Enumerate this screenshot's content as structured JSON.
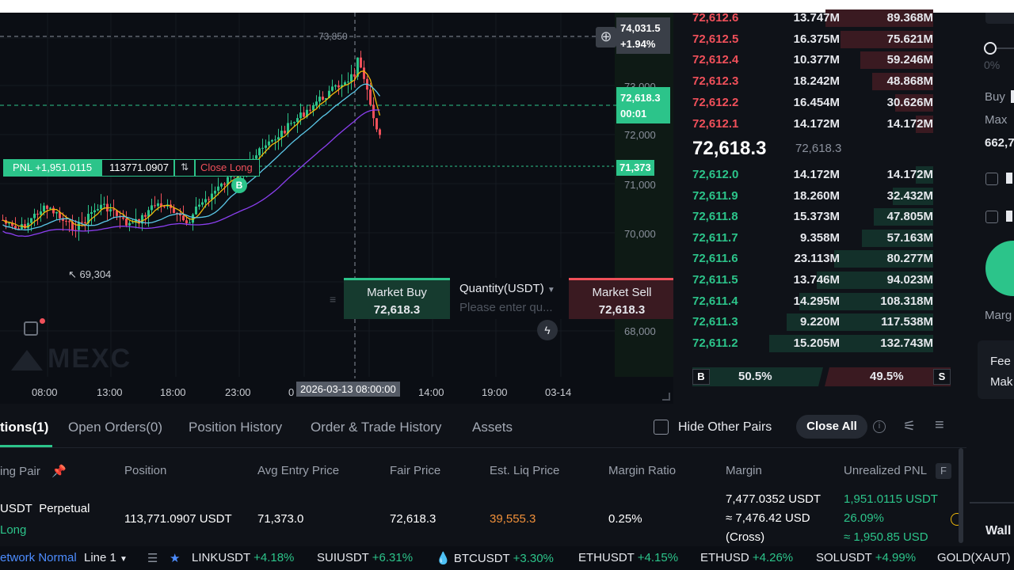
{
  "chart": {
    "price_scale": [
      "73,000",
      "72,000",
      "71,000",
      "70,000",
      "68,000"
    ],
    "time_axis": [
      "08:00",
      "13:00",
      "18:00",
      "23:00",
      "0",
      "14:00",
      "19:00",
      "03-14"
    ],
    "crosshair_time": "2026-03-13 08:00:00",
    "high_marker": "73,850",
    "low_marker": "69,304",
    "top_badge": {
      "price": "74,031.5",
      "change": "+1.94%"
    },
    "last_price_badge": {
      "price": "72,618.3",
      "countdown": "00:01"
    },
    "entry_line_badge": "71,373",
    "pnl_bar": {
      "pnl_label": "PNL +1,951.0115",
      "size": "113771.0907",
      "close_label": "Close Long"
    },
    "entry_marker": "B",
    "watermark": "MEXC",
    "colors": {
      "up": "#2cc48a",
      "down": "#f0505a",
      "ma_yellow": "#f0b90b",
      "ma_cyan": "#5bc8e8",
      "ma_purple": "#8b3ff0"
    }
  },
  "quick_trade": {
    "buy_label": "Market Buy",
    "buy_price": "72,618.3",
    "qty_label": "Quantity(USDT)",
    "qty_placeholder": "Please enter qu...",
    "sell_label": "Market Sell",
    "sell_price": "72,618.3"
  },
  "orderbook": {
    "asks": [
      {
        "price": "72,612.6",
        "qty": "13.747M",
        "total": "89.368M",
        "depth": 0.62
      },
      {
        "price": "72,612.5",
        "qty": "16.375M",
        "total": "75.621M",
        "depth": 0.53
      },
      {
        "price": "72,612.4",
        "qty": "10.377M",
        "total": "59.246M",
        "depth": 0.42
      },
      {
        "price": "72,612.3",
        "qty": "18.242M",
        "total": "48.868M",
        "depth": 0.35
      },
      {
        "price": "72,612.2",
        "qty": "16.454M",
        "total": "30.626M",
        "depth": 0.22
      },
      {
        "price": "72,612.1",
        "qty": "14.172M",
        "total": "14.172M",
        "depth": 0.1
      }
    ],
    "mid_price": "72,618.3",
    "mark_price": "72,618.3",
    "bids": [
      {
        "price": "72,612.0",
        "qty": "14.172M",
        "total": "14.172M",
        "depth": 0.1
      },
      {
        "price": "72,611.9",
        "qty": "18.260M",
        "total": "32.432M",
        "depth": 0.23
      },
      {
        "price": "72,611.8",
        "qty": "15.373M",
        "total": "47.805M",
        "depth": 0.34
      },
      {
        "price": "72,611.7",
        "qty": "9.358M",
        "total": "57.163M",
        "depth": 0.41
      },
      {
        "price": "72,611.6",
        "qty": "23.113M",
        "total": "80.277M",
        "depth": 0.57
      },
      {
        "price": "72,611.5",
        "qty": "13.746M",
        "total": "94.023M",
        "depth": 0.67
      },
      {
        "price": "72,611.4",
        "qty": "14.295M",
        "total": "108.318M",
        "depth": 0.77
      },
      {
        "price": "72,611.3",
        "qty": "9.220M",
        "total": "117.538M",
        "depth": 0.84
      },
      {
        "price": "72,611.2",
        "qty": "15.205M",
        "total": "132.743M",
        "depth": 0.94
      }
    ],
    "ratio": {
      "buy_letter": "B",
      "buy_pct": "50.5%",
      "sell_pct": "49.5%",
      "sell_letter": "S",
      "buy_fraction": 0.505
    }
  },
  "right_panel": {
    "slider_pct": "0%",
    "buy_label": "Buy",
    "max_label": "Max",
    "max_value": "662,7",
    "marg_label": "Marg",
    "fee_label": "Fee",
    "mak_label": "Mak",
    "wallet_label": "Wall"
  },
  "bottom": {
    "tabs": [
      "tions(1)",
      "Open Orders(0)",
      "Position History",
      "Order & Trade History",
      "Assets"
    ],
    "hide_other_pairs": "Hide Other Pairs",
    "close_all": "Close All",
    "headers": [
      "ing Pair",
      "Position",
      "Avg Entry Price",
      "Fair Price",
      "Est. Liq Price",
      "Margin Ratio",
      "Margin",
      "Unrealized PNL",
      "F"
    ],
    "row": {
      "pair": "USDT",
      "type": "Perpetual",
      "side": "Long",
      "position": "113,771.0907 USDT",
      "avg_entry": "71,373.0",
      "fair_price": "72,618.3",
      "liq_price": "39,555.3",
      "margin_ratio": "0.25%",
      "margin_usdt": "7,477.0352 USDT",
      "margin_usd": "≈ 7,476.42 USD",
      "margin_mode": "(Cross)",
      "pnl_usdt": "1,951.0115 USDT",
      "pnl_pct": "26.09%",
      "pnl_usd": "≈ 1,950.85 USD"
    }
  },
  "ticker": {
    "network": "etwork Normal",
    "line": "Line 1",
    "items": [
      {
        "sym": "LINKUSDT",
        "chg": "+4.18%"
      },
      {
        "sym": "SUIUSDT",
        "chg": "+6.31%"
      },
      {
        "sym": "BTCUSDT",
        "chg": "+3.30%"
      },
      {
        "sym": "ETHUSDT",
        "chg": "+4.15%"
      },
      {
        "sym": "ETHUSD",
        "chg": "+4.26%"
      },
      {
        "sym": "SOLUSDT",
        "chg": "+4.99%"
      },
      {
        "sym": "GOLD(XAUT)",
        "chg": ""
      }
    ]
  }
}
